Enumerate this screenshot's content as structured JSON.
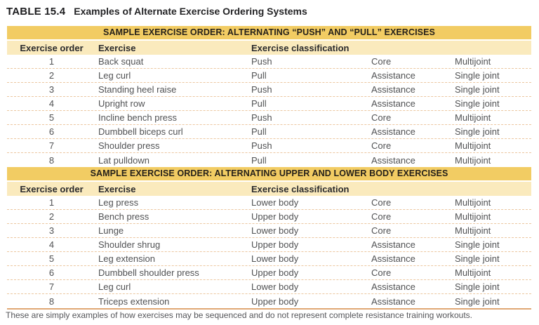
{
  "title": {
    "label": "TABLE 15.4",
    "text": "Examples of Alternate Exercise Ordering Systems"
  },
  "columns": {
    "order": "Exercise order",
    "exercise": "Exercise",
    "classification": "Exercise classification"
  },
  "sections": [
    {
      "header": "SAMPLE EXERCISE ORDER: ALTERNATING “PUSH” AND “PULL” EXERCISES",
      "rows": [
        {
          "order": "1",
          "exercise": "Back squat",
          "class1": "Push",
          "class2": "Core",
          "class3": "Multijoint"
        },
        {
          "order": "2",
          "exercise": "Leg curl",
          "class1": "Pull",
          "class2": "Assistance",
          "class3": "Single joint"
        },
        {
          "order": "3",
          "exercise": "Standing heel raise",
          "class1": "Push",
          "class2": "Assistance",
          "class3": "Single joint"
        },
        {
          "order": "4",
          "exercise": "Upright row",
          "class1": "Pull",
          "class2": "Assistance",
          "class3": "Single joint"
        },
        {
          "order": "5",
          "exercise": "Incline bench press",
          "class1": "Push",
          "class2": "Core",
          "class3": "Multijoint"
        },
        {
          "order": "6",
          "exercise": "Dumbbell biceps curl",
          "class1": "Pull",
          "class2": "Assistance",
          "class3": "Single joint"
        },
        {
          "order": "7",
          "exercise": "Shoulder press",
          "class1": "Push",
          "class2": "Core",
          "class3": "Multijoint"
        },
        {
          "order": "8",
          "exercise": "Lat pulldown",
          "class1": "Pull",
          "class2": "Assistance",
          "class3": "Multijoint"
        }
      ]
    },
    {
      "header": "SAMPLE EXERCISE ORDER: ALTERNATING UPPER AND LOWER BODY EXERCISES",
      "rows": [
        {
          "order": "1",
          "exercise": "Leg press",
          "class1": "Lower body",
          "class2": "Core",
          "class3": "Multijoint"
        },
        {
          "order": "2",
          "exercise": "Bench press",
          "class1": "Upper body",
          "class2": "Core",
          "class3": "Multijoint"
        },
        {
          "order": "3",
          "exercise": "Lunge",
          "class1": "Lower body",
          "class2": "Core",
          "class3": "Multijoint"
        },
        {
          "order": "4",
          "exercise": "Shoulder shrug",
          "class1": "Upper body",
          "class2": "Assistance",
          "class3": "Single joint"
        },
        {
          "order": "5",
          "exercise": "Leg extension",
          "class1": "Lower body",
          "class2": "Assistance",
          "class3": "Single joint"
        },
        {
          "order": "6",
          "exercise": "Dumbbell shoulder press",
          "class1": "Upper body",
          "class2": "Core",
          "class3": "Multijoint"
        },
        {
          "order": "7",
          "exercise": "Leg curl",
          "class1": "Lower body",
          "class2": "Assistance",
          "class3": "Single joint"
        },
        {
          "order": "8",
          "exercise": "Triceps extension",
          "class1": "Upper body",
          "class2": "Assistance",
          "class3": "Single joint"
        }
      ]
    }
  ],
  "footnote": "These are simply examples of how exercises may be sequenced and do not represent complete resistance training workouts.",
  "colors": {
    "section_band": "#f2cc63",
    "column_header_row": "#faeabd",
    "row_divider": "#ecc7a0",
    "bottom_rule": "#e0a773",
    "body_text": "#515254",
    "heading_text": "#1d1d1f"
  }
}
